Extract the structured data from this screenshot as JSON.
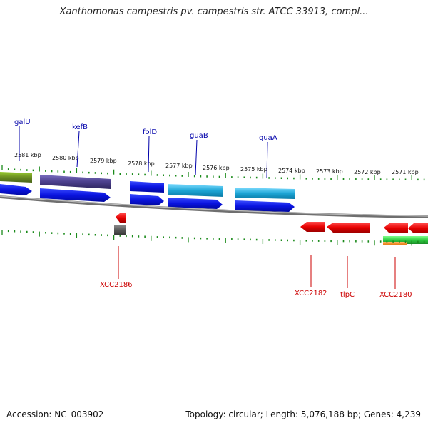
{
  "title": "Xanthomonas campestris pv. campestris str. ATCC 33913, compl...",
  "footer": {
    "accession": "Accession: NC_003902",
    "topology": "Topology: circular; Length: 5,076,188 bp; Genes: 4,239"
  },
  "scale": {
    "labels": [
      "2581 kbp",
      "2580 kbp",
      "2579 kbp",
      "2578 kbp",
      "2577 kbp",
      "2576 kbp",
      "2575 kbp",
      "2574 kbp",
      "2573 kbp",
      "2572 kbp",
      "2571 kbp"
    ]
  },
  "genes_top": [
    {
      "name": "galU"
    },
    {
      "name": "kefB"
    },
    {
      "name": "folD"
    },
    {
      "name": "guaB"
    },
    {
      "name": "guaA"
    }
  ],
  "genes_bottom": [
    {
      "name": "XCC2186"
    },
    {
      "name": "XCC2182"
    },
    {
      "name": "tlpC"
    },
    {
      "name": "XCC2180"
    }
  ],
  "colors": {
    "forward_cds": "#0a14e0",
    "reverse_cds": "#e60000",
    "gc_skew_tick": "#1a8a1a",
    "galU_feature": "#6b8e23",
    "kefB_feature": "#4b3f8c",
    "guaB_feature": "#1ea6d6",
    "guaA_feature": "#1ea6d6",
    "gray_feature": "#555555",
    "green_feature": "#2ecc40",
    "orange_feature": "#ff8c1a",
    "backbone": "#888888"
  }
}
